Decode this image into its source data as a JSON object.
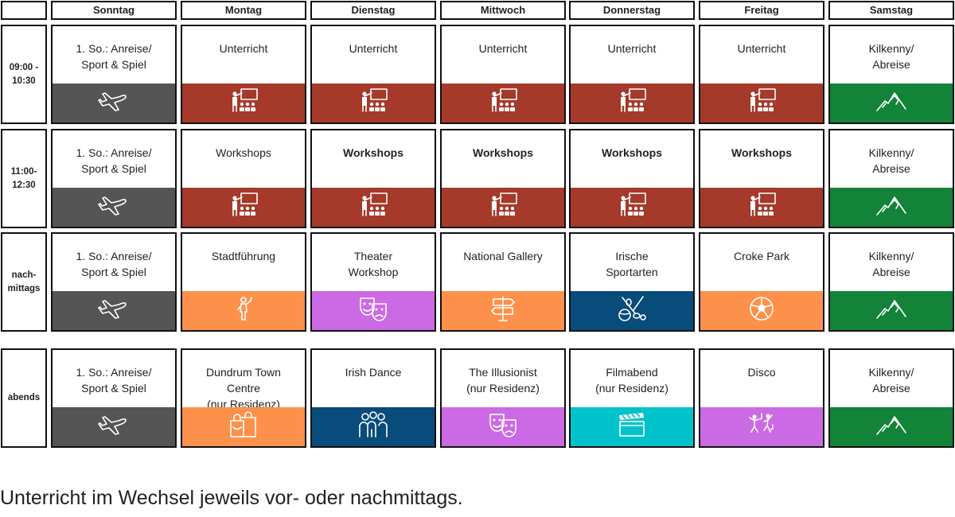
{
  "days": [
    "Sonntag",
    "Montag",
    "Dienstag",
    "Mittwoch",
    "Donnerstag",
    "Freitag",
    "Samstag"
  ],
  "colors": {
    "gray": "#555555",
    "red": "#a5392a",
    "green": "#128338",
    "orange": "#fd914b",
    "purple": "#cb6ae4",
    "navy": "#074c7a",
    "teal": "#00c2cb"
  },
  "rows": [
    {
      "time": [
        "09:00 -",
        "10:30"
      ],
      "cells": [
        {
          "text": [
            "1. So.: Anreise/",
            "Sport & Spiel"
          ],
          "color": "gray",
          "icon": "plane-icon"
        },
        {
          "text": [
            "Unterricht"
          ],
          "color": "red",
          "icon": "teacher-icon"
        },
        {
          "text": [
            "Unterricht"
          ],
          "color": "red",
          "icon": "teacher-icon"
        },
        {
          "text": [
            "Unterricht"
          ],
          "color": "red",
          "icon": "teacher-icon"
        },
        {
          "text": [
            "Unterricht"
          ],
          "color": "red",
          "icon": "teacher-icon"
        },
        {
          "text": [
            "Unterricht"
          ],
          "color": "red",
          "icon": "teacher-icon"
        },
        {
          "text": [
            "Kilkenny/",
            "Abreise"
          ],
          "color": "green",
          "icon": "mountain-icon"
        }
      ]
    },
    {
      "time": [
        "11:00-",
        "12:30"
      ],
      "cells": [
        {
          "text": [
            "1. So.: Anreise/",
            "Sport & Spiel"
          ],
          "color": "gray",
          "icon": "plane-icon"
        },
        {
          "text": [
            "Workshops"
          ],
          "color": "red",
          "icon": "teacher-icon"
        },
        {
          "text": [
            "Workshops"
          ],
          "color": "red",
          "icon": "teacher-icon",
          "bold": true
        },
        {
          "text": [
            "Workshops"
          ],
          "color": "red",
          "icon": "teacher-icon",
          "bold": true
        },
        {
          "text": [
            "Workshops"
          ],
          "color": "red",
          "icon": "teacher-icon",
          "bold": true
        },
        {
          "text": [
            "Workshops"
          ],
          "color": "red",
          "icon": "teacher-icon",
          "bold": true
        },
        {
          "text": [
            "Kilkenny/",
            "Abreise"
          ],
          "color": "green",
          "icon": "mountain-icon"
        }
      ]
    },
    {
      "time": [
        "nach-",
        "mittags"
      ],
      "cells": [
        {
          "text": [
            "1. So.: Anreise/",
            "Sport & Spiel"
          ],
          "color": "gray",
          "icon": "plane-icon"
        },
        {
          "text": [
            "Stadtführung"
          ],
          "color": "orange",
          "icon": "guide-icon"
        },
        {
          "text": [
            "Theater",
            "Workshop"
          ],
          "color": "purple",
          "icon": "theater-masks-icon"
        },
        {
          "text": [
            "National Gallery"
          ],
          "color": "orange",
          "icon": "signpost-icon"
        },
        {
          "text": [
            "Irische",
            "Sportarten"
          ],
          "color": "navy",
          "icon": "sports-equipment-icon"
        },
        {
          "text": [
            "Croke Park"
          ],
          "color": "orange",
          "icon": "soccer-ball-icon"
        },
        {
          "text": [
            "Kilkenny/",
            "Abreise"
          ],
          "color": "green",
          "icon": "mountain-icon"
        }
      ]
    },
    {
      "time": [
        "abends"
      ],
      "cells": [
        {
          "text": [
            "1. So.: Anreise/",
            "Sport & Spiel"
          ],
          "color": "gray",
          "icon": "plane-icon"
        },
        {
          "text": [
            "Dundrum Town",
            "Centre",
            "(nur Residenz)"
          ],
          "color": "orange",
          "icon": "shopping-bags-icon"
        },
        {
          "text": [
            "Irish Dance"
          ],
          "color": "navy",
          "icon": "dancers-group-icon"
        },
        {
          "text": [
            "The Illusionist",
            "(nur Residenz)"
          ],
          "color": "purple",
          "icon": "theater-masks-icon"
        },
        {
          "text": [
            "Filmabend",
            "(nur Residenz)"
          ],
          "color": "teal",
          "icon": "clapperboard-icon"
        },
        {
          "text": [
            "Disco"
          ],
          "color": "purple",
          "icon": "disco-dancers-icon"
        },
        {
          "text": [
            "Kilkenny/",
            "Abreise"
          ],
          "color": "green",
          "icon": "mountain-icon"
        }
      ]
    }
  ],
  "footer": "Unterricht im Wechsel jeweils vor- oder nachmittags."
}
